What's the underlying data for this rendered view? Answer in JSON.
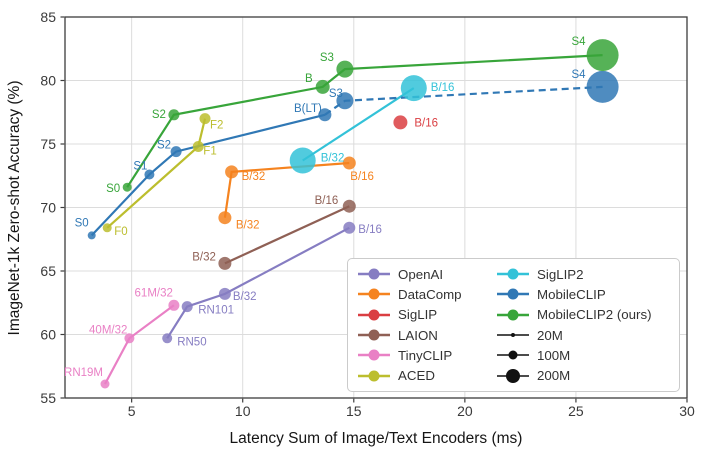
{
  "chart_data": {
    "type": "scatter",
    "title": "",
    "xlabel": "Latency Sum of Image/Text Encoders (ms)",
    "ylabel": "ImageNet-1k Zero-shot Accuracy (%)",
    "xlim": [
      2,
      30
    ],
    "ylim": [
      55,
      85
    ],
    "xticks": [
      5,
      10,
      15,
      20,
      25,
      30
    ],
    "yticks": [
      55,
      60,
      65,
      70,
      75,
      80,
      85
    ],
    "grid": true,
    "legend_position": "lower right",
    "marker_size_meaning": "model parameter count",
    "series": [
      {
        "name": "OpenAI",
        "color": "#867dc2",
        "points": [
          {
            "label": "RN50",
            "x": 6.6,
            "y": 59.7,
            "r": 5,
            "la": "start",
            "ldx": 10,
            "ldy": 4
          },
          {
            "label": "RN101",
            "x": 7.5,
            "y": 62.2,
            "r": 5.5,
            "la": "start",
            "ldx": 11,
            "ldy": 4
          },
          {
            "label": "B/32",
            "x": 9.2,
            "y": 63.2,
            "r": 6,
            "la": "start",
            "ldx": 8,
            "ldy": 3
          },
          {
            "label": "B/16",
            "x": 14.8,
            "y": 68.4,
            "r": 6,
            "la": "start",
            "ldx": 9,
            "ldy": 2
          }
        ]
      },
      {
        "name": "DataComp",
        "color": "#f5831f",
        "points": [
          {
            "label": "B/32",
            "x": 9.2,
            "y": 69.2,
            "r": 6.5,
            "la": "start",
            "ldx": 11,
            "ldy": 8
          },
          {
            "label": "B/32",
            "x": 9.5,
            "y": 72.8,
            "r": 6.5,
            "la": "start",
            "ldx": 10,
            "ldy": 5
          },
          {
            "label": "B/16",
            "x": 14.8,
            "y": 73.5,
            "r": 6.5,
            "la": "start",
            "ldx": 1,
            "ldy": 14
          }
        ]
      },
      {
        "name": "SigLIP",
        "color": "#da3e42",
        "points": [
          {
            "label": "B/16",
            "x": 17.1,
            "y": 76.7,
            "r": 7,
            "la": "start",
            "ldx": 14,
            "ldy": 1
          }
        ]
      },
      {
        "name": "LAION",
        "color": "#8f6055",
        "points": [
          {
            "label": "B/32",
            "x": 9.2,
            "y": 65.6,
            "r": 6.5,
            "la": "end",
            "ldx": -9,
            "ldy": -6
          },
          {
            "label": "B/16",
            "x": 14.8,
            "y": 70.1,
            "r": 6.5,
            "la": "end",
            "ldx": -11,
            "ldy": -5
          }
        ]
      },
      {
        "name": "TinyCLIP",
        "color": "#e980c5",
        "points": [
          {
            "label": "RN19M",
            "x": 3.8,
            "y": 56.1,
            "r": 4.5,
            "la": "end",
            "ldx": -2,
            "ldy": -11
          },
          {
            "label": "40M/32",
            "x": 4.9,
            "y": 59.7,
            "r": 5,
            "la": "end",
            "ldx": -2,
            "ldy": -8
          },
          {
            "label": "61M/32",
            "x": 6.9,
            "y": 62.3,
            "r": 5.5,
            "la": "end",
            "ldx": -1,
            "ldy": -12
          }
        ]
      },
      {
        "name": "ACED",
        "color": "#bcbe2e",
        "points": [
          {
            "label": "F0",
            "x": 3.9,
            "y": 68.4,
            "r": 4.5,
            "la": "start",
            "ldx": 7,
            "ldy": 4
          },
          {
            "label": "F1",
            "x": 8.0,
            "y": 74.8,
            "r": 5.5,
            "la": "start",
            "ldx": 5,
            "ldy": 5
          },
          {
            "label": "F2",
            "x": 8.3,
            "y": 77.0,
            "r": 5.5,
            "la": "start",
            "ldx": 5,
            "ldy": 7
          }
        ]
      },
      {
        "name": "SigLIP2",
        "color": "#33c2d8",
        "points": [
          {
            "label": "B/32",
            "x": 12.7,
            "y": 73.7,
            "r": 13,
            "la": "start",
            "ldx": 18,
            "ldy": -2
          },
          {
            "label": "B/16",
            "x": 17.7,
            "y": 79.4,
            "r": 13,
            "la": "start",
            "ldx": 17,
            "ldy": 0
          }
        ]
      },
      {
        "name": "MobileCLIP",
        "color": "#3078b5",
        "dash_from": 3,
        "points": [
          {
            "label": "S0",
            "x": 3.2,
            "y": 67.8,
            "r": 4,
            "la": "end",
            "ldx": -3,
            "ldy": -12
          },
          {
            "label": "S1",
            "x": 5.8,
            "y": 72.6,
            "r": 5,
            "la": "end",
            "ldx": -2,
            "ldy": -8
          },
          {
            "label": "S2",
            "x": 7.0,
            "y": 74.4,
            "r": 5.5,
            "la": "end",
            "ldx": -5,
            "ldy": -6
          },
          {
            "label": "B(LT)",
            "x": 13.7,
            "y": 77.3,
            "r": 6.5,
            "la": "end",
            "ldx": -3,
            "ldy": -6
          },
          {
            "label": "S3",
            "x": 14.6,
            "y": 78.4,
            "r": 8.5,
            "la": "end",
            "ldx": -2,
            "ldy": -7
          },
          {
            "label": "S4",
            "x": 26.2,
            "y": 79.5,
            "r": 16,
            "la": "end",
            "ldx": -17,
            "ldy": -12
          }
        ]
      },
      {
        "name": "MobileCLIP2 (ours)",
        "color": "#38a53a",
        "points": [
          {
            "label": "S0",
            "x": 4.8,
            "y": 71.6,
            "r": 4.5,
            "la": "end",
            "ldx": -7,
            "ldy": 2
          },
          {
            "label": "S2",
            "x": 6.9,
            "y": 77.3,
            "r": 5.5,
            "la": "end",
            "ldx": -8,
            "ldy": 0
          },
          {
            "label": "B",
            "x": 13.6,
            "y": 79.5,
            "r": 7,
            "la": "end",
            "ldx": -10,
            "ldy": -8
          },
          {
            "label": "S3",
            "x": 14.6,
            "y": 80.9,
            "r": 8.5,
            "la": "end",
            "ldx": -11,
            "ldy": -11
          },
          {
            "label": "S4",
            "x": 26.2,
            "y": 82.0,
            "r": 16,
            "la": "end",
            "ldx": -17,
            "ldy": -13
          }
        ]
      }
    ],
    "size_legend": [
      {
        "label": "20M",
        "r": 2
      },
      {
        "label": "100M",
        "r": 4.5
      },
      {
        "label": "200M",
        "r": 7
      }
    ]
  }
}
